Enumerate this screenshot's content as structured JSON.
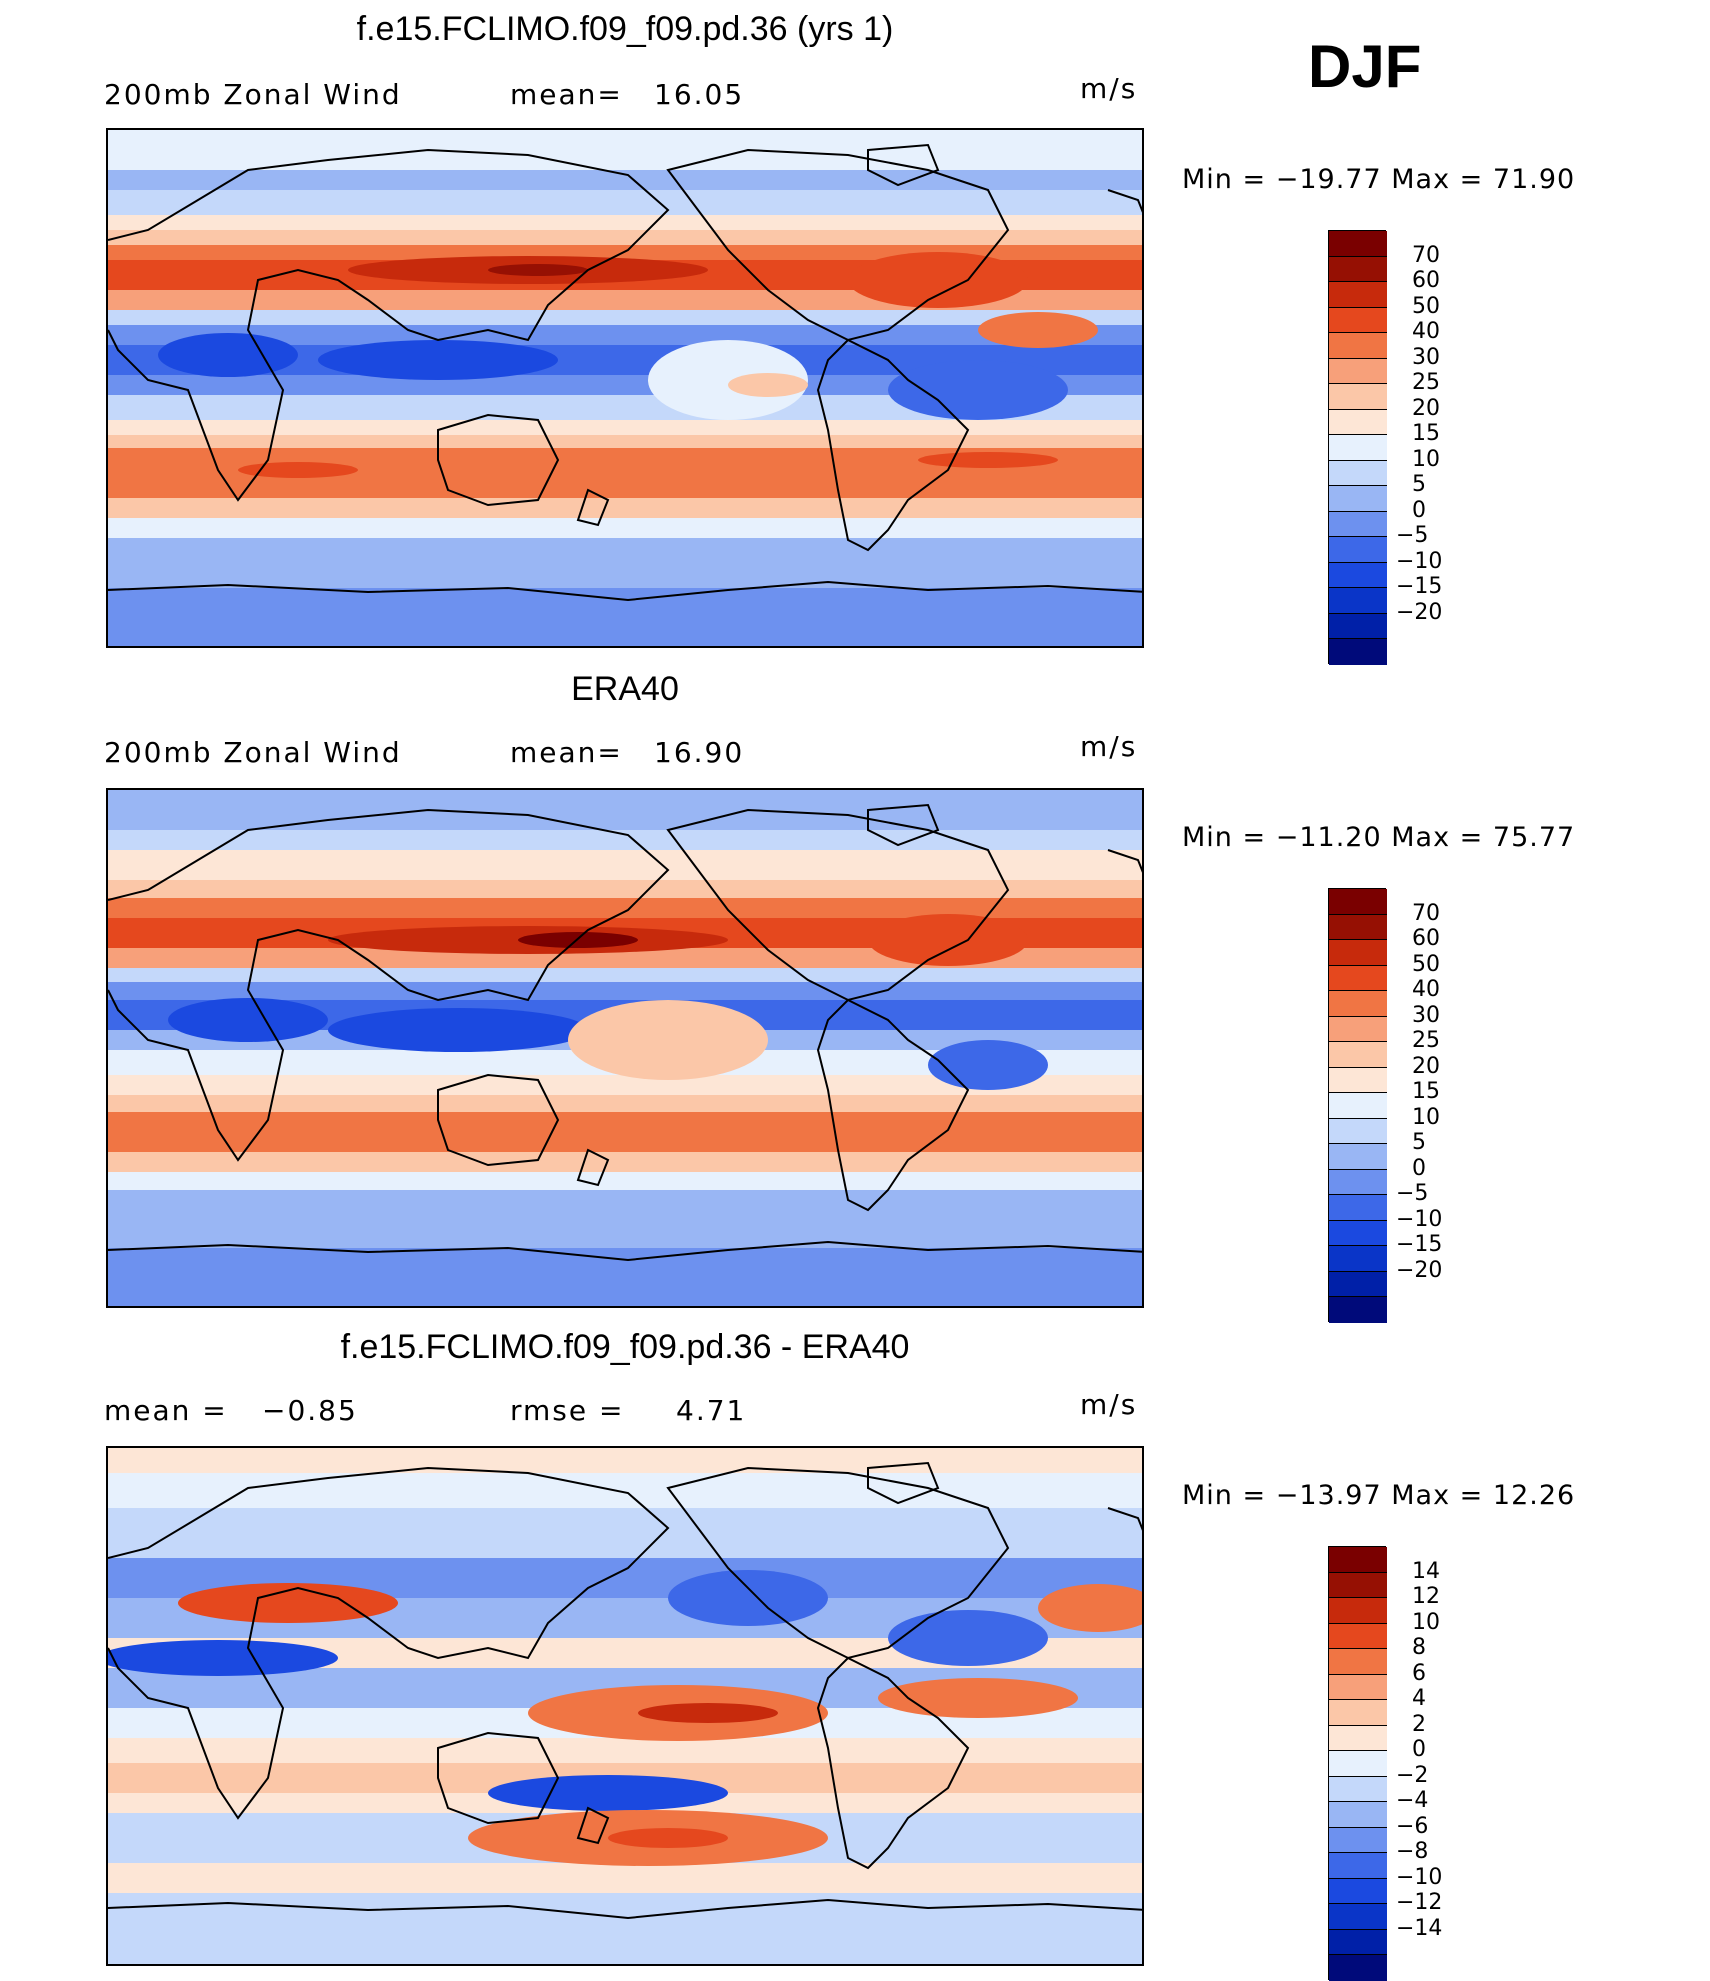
{
  "season": "DJF",
  "panels": [
    {
      "title": "f.e15.FCLIMO.f09_f09.pd.36 (yrs 1)",
      "left_label": "200mb Zonal Wind",
      "stat1_label": "mean=",
      "stat1_value": "16.05",
      "stat2_label": "",
      "stat2_value": "",
      "units": "m/s",
      "min_label": "Min",
      "min_value": "−19.77",
      "max_label": "Max",
      "max_value": "71.90"
    },
    {
      "title": "ERA40",
      "left_label": "200mb Zonal Wind",
      "stat1_label": "mean=",
      "stat1_value": "16.90",
      "stat2_label": "",
      "stat2_value": "",
      "units": "m/s",
      "min_label": "Min",
      "min_value": "−11.20",
      "max_label": "Max",
      "max_value": "75.77"
    },
    {
      "title": "f.e15.FCLIMO.f09_f09.pd.36 - ERA40",
      "left_label": "",
      "stat1_label": "mean =",
      "stat1_value": "−0.85",
      "stat2_label": "rmse =",
      "stat2_value": "4.71",
      "units": "m/s",
      "min_label": "Min",
      "min_value": "−13.97",
      "max_label": "Max",
      "max_value": "12.26"
    }
  ],
  "chart_data": [
    {
      "type": "heatmap",
      "title": "f.e15.FCLIMO.f09_f09.pd.36 (yrs 1)",
      "variable": "200mb Zonal Wind",
      "units": "m/s",
      "mean": 16.05,
      "min": -19.77,
      "max": 71.9,
      "colorbar_levels": [
        -20,
        -15,
        -10,
        -5,
        0,
        5,
        10,
        15,
        20,
        25,
        30,
        40,
        50,
        60,
        70
      ],
      "colorbar_colors": [
        "#000a7a",
        "#0020a8",
        "#0a35c8",
        "#1b49e0",
        "#3d68e8",
        "#6d91ef",
        "#99b6f4",
        "#c4d8fa",
        "#e7f1fd",
        "#fde6d6",
        "#fbc7a8",
        "#f7a07a",
        "#f07544",
        "#e5481e",
        "#c72a0c",
        "#961003",
        "#7a0000"
      ]
    },
    {
      "type": "heatmap",
      "title": "ERA40",
      "variable": "200mb Zonal Wind",
      "units": "m/s",
      "mean": 16.9,
      "min": -11.2,
      "max": 75.77,
      "colorbar_levels": [
        -20,
        -15,
        -10,
        -5,
        0,
        5,
        10,
        15,
        20,
        25,
        30,
        40,
        50,
        60,
        70
      ],
      "colorbar_colors": [
        "#000a7a",
        "#0020a8",
        "#0a35c8",
        "#1b49e0",
        "#3d68e8",
        "#6d91ef",
        "#99b6f4",
        "#c4d8fa",
        "#e7f1fd",
        "#fde6d6",
        "#fbc7a8",
        "#f7a07a",
        "#f07544",
        "#e5481e",
        "#c72a0c",
        "#961003",
        "#7a0000"
      ]
    },
    {
      "type": "heatmap",
      "title": "f.e15.FCLIMO.f09_f09.pd.36 - ERA40",
      "units": "m/s",
      "mean": -0.85,
      "rmse": 4.71,
      "min": -13.97,
      "max": 12.26,
      "colorbar_levels": [
        -14,
        -12,
        -10,
        -8,
        -6,
        -4,
        -2,
        0,
        2,
        4,
        6,
        8,
        10,
        12,
        14
      ],
      "colorbar_colors": [
        "#000a7a",
        "#0020a8",
        "#0a35c8",
        "#1b49e0",
        "#3d68e8",
        "#6d91ef",
        "#99b6f4",
        "#c4d8fa",
        "#e7f1fd",
        "#fde6d6",
        "#fbc7a8",
        "#f7a07a",
        "#f07544",
        "#e5481e",
        "#c72a0c",
        "#961003",
        "#7a0000"
      ]
    }
  ]
}
